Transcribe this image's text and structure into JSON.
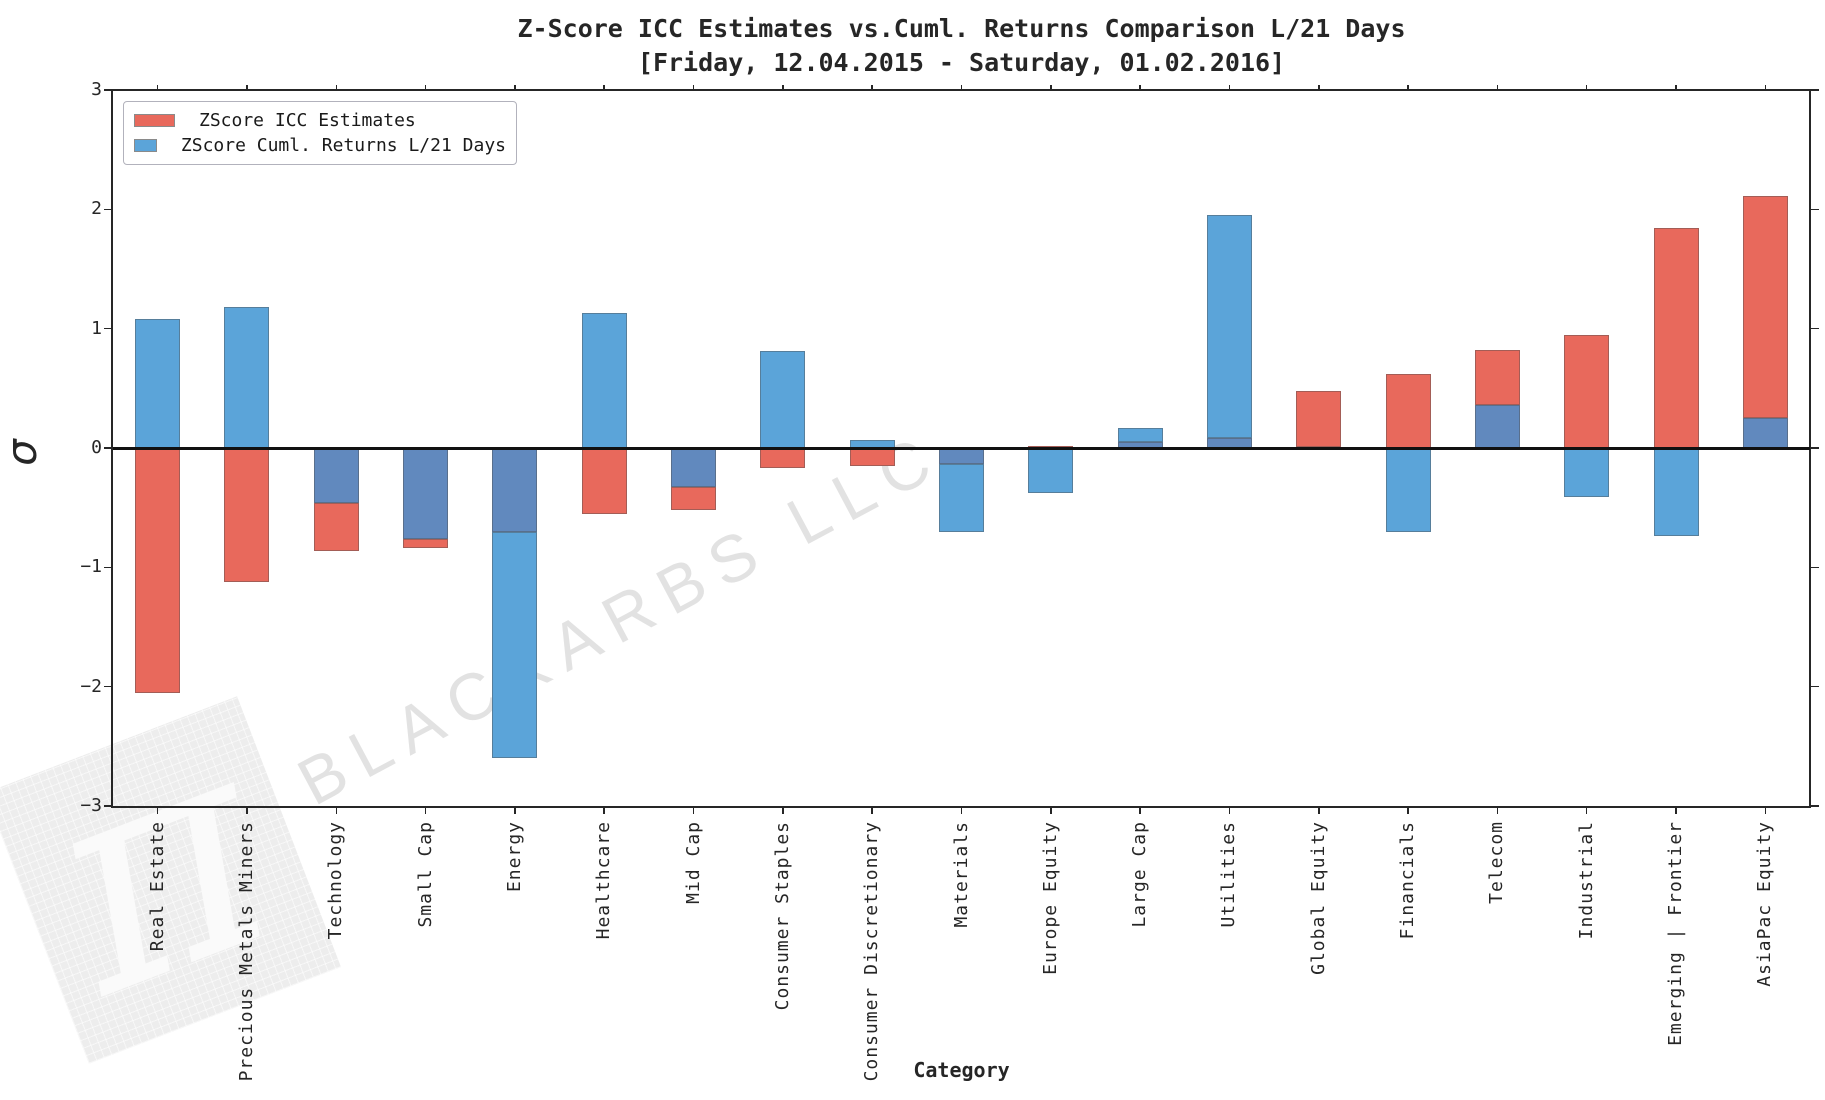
{
  "chart_data": {
    "type": "bar",
    "title": "Z-Score ICC Estimates vs.Cuml. Returns Comparison L/21 Days",
    "subtitle": "[Friday, 12.04.2015 - Saturday, 01.02.2016]",
    "xlabel": "Category",
    "ylabel": "σ",
    "ylim": [
      -3,
      3
    ],
    "grid": false,
    "legend_position": "upper left",
    "categories": [
      "Real Estate",
      "Precious Metals Miners",
      "Technology",
      "Small Cap",
      "Energy",
      "Healthcare",
      "Mid Cap",
      "Consumer Staples",
      "Consumer Discretionary",
      "Materials",
      "Europe Equity",
      "Large Cap",
      "Utilities",
      "Global Equity",
      "Financials",
      "Telecom",
      "Industrial",
      "Emerging | Frontier",
      "AsiaPac Equity"
    ],
    "series": [
      {
        "name": "ZScore ICC Estimates",
        "color": "#E8695C",
        "values": [
          -2.05,
          -1.12,
          -0.86,
          -0.84,
          -0.7,
          -0.55,
          -0.52,
          -0.17,
          -0.15,
          -0.13,
          0.02,
          0.05,
          0.08,
          0.48,
          0.62,
          0.82,
          0.95,
          1.84,
          2.11
        ]
      },
      {
        "name": "ZScore Cuml. Returns L/21 Days",
        "color": "#5BA4D9",
        "values": [
          1.08,
          1.18,
          -0.46,
          -0.76,
          -2.6,
          1.13,
          -0.33,
          0.81,
          0.07,
          -0.7,
          -0.38,
          0.17,
          1.95,
          0.01,
          -0.7,
          0.36,
          -0.41,
          -0.74,
          0.25
        ]
      }
    ],
    "overlap_color": "#6189BE",
    "yticks": [
      {
        "label": "3",
        "value": 3
      },
      {
        "label": "2",
        "value": 2
      },
      {
        "label": "1",
        "value": 1
      },
      {
        "label": "0",
        "value": 0
      },
      {
        "label": "−1",
        "value": -1
      },
      {
        "label": "−2",
        "value": -2
      },
      {
        "label": "−3",
        "value": -3
      }
    ]
  },
  "watermark": {
    "text": "BLACKARBS LLC",
    "logo_char": "π"
  },
  "colors": {
    "axis": "#262626",
    "zero_line": "#111111",
    "watermark_text": "#e2e2e2"
  }
}
